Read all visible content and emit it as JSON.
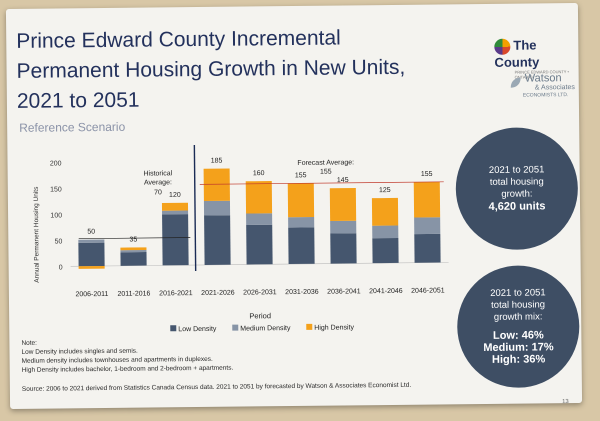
{
  "title_lines": [
    "Prince Edward County Incremental",
    "Permanent Housing  Growth in New Units,",
    "2021 to 2051"
  ],
  "subtitle": "Reference Scenario",
  "logos": {
    "county": "The County",
    "county_tagline": "PRINCE EDWARD COUNTY • ONTARIO",
    "watson_name": "Watson",
    "watson_amp": "& Associates",
    "watson_econ": "ECONOMISTS LTD."
  },
  "circle_total": {
    "line1": "2021 to 2051",
    "line2": "total housing",
    "line3": "growth:",
    "value": "4,620 units"
  },
  "circle_mix": {
    "line1": "2021 to 2051",
    "line2": "total housing",
    "line3": "growth mix:",
    "low": "Low: 46%",
    "medium": "Medium: 17%",
    "high": "High: 36%"
  },
  "notes": [
    "Note:",
    "Low Density includes singles and semis.",
    "Medium density includes townhouses and apartments in duplexes.",
    "High Density includes bachelor, 1-bedroom and 2-bedroom + apartments."
  ],
  "source": "Source: 2006 to 2021 derived from Statistics Canada Census data. 2021 to 2051 by forecasted by Watson & Associates Economist  Ltd.",
  "page_number": "13",
  "colors": {
    "low": "#45566e",
    "medium": "#8794a6",
    "high": "#f4a11b",
    "title": "#23315c"
  },
  "chart_data": {
    "type": "bar",
    "stacked": true,
    "xlabel": "Period",
    "ylabel": "Annual Permanent Housing Units",
    "ylim": [
      -10,
      200
    ],
    "yticks": [
      0,
      50,
      100,
      150,
      200
    ],
    "categories": [
      "2006-2011",
      "2011-2016",
      "2016-2021",
      "2021-2026",
      "2026-2031",
      "2031-2036",
      "2036-2041",
      "2041-2046",
      "2046-2051"
    ],
    "totals": [
      50,
      35,
      120,
      185,
      160,
      155,
      145,
      125,
      155
    ],
    "series": [
      {
        "name": "Low Density",
        "values": [
          45,
          26,
          98,
          95,
          76,
          70,
          58,
          48,
          55
        ]
      },
      {
        "name": "Medium Density",
        "values": [
          6,
          4,
          7,
          28,
          22,
          20,
          24,
          24,
          32
        ]
      },
      {
        "name": "High Density",
        "values": [
          -5,
          5,
          15,
          62,
          62,
          65,
          63,
          53,
          68
        ]
      }
    ],
    "annotations": [
      {
        "text": "Historical Average:",
        "value_text": "70",
        "value": 70
      },
      {
        "text": "Forecast Average:",
        "value_text": "155",
        "value": 155
      }
    ],
    "legend_placement": "bottom"
  }
}
